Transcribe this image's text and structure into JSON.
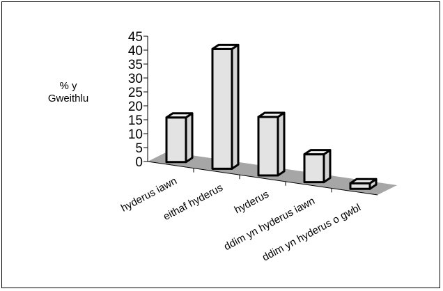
{
  "chart_data": {
    "type": "bar",
    "categories": [
      "hyderus iawn",
      "eithaf hyderus",
      "hyderus",
      "ddim yn hyderus iawn",
      "ddim yn hyderus o gwbl"
    ],
    "values": [
      16,
      43,
      21,
      10,
      2
    ],
    "ylabel": "% y\nGweithlu",
    "ylim": [
      0,
      45
    ],
    "yticks": [
      0,
      5,
      10,
      15,
      20,
      25,
      30,
      35,
      40,
      45
    ],
    "three_d": true,
    "colors": {
      "bar_face": "#e3e3e3",
      "bar_side": "#d4d4d4",
      "bar_top": "#f2f2f2",
      "floor": "#a6a6a6",
      "outline": "#000000"
    }
  }
}
